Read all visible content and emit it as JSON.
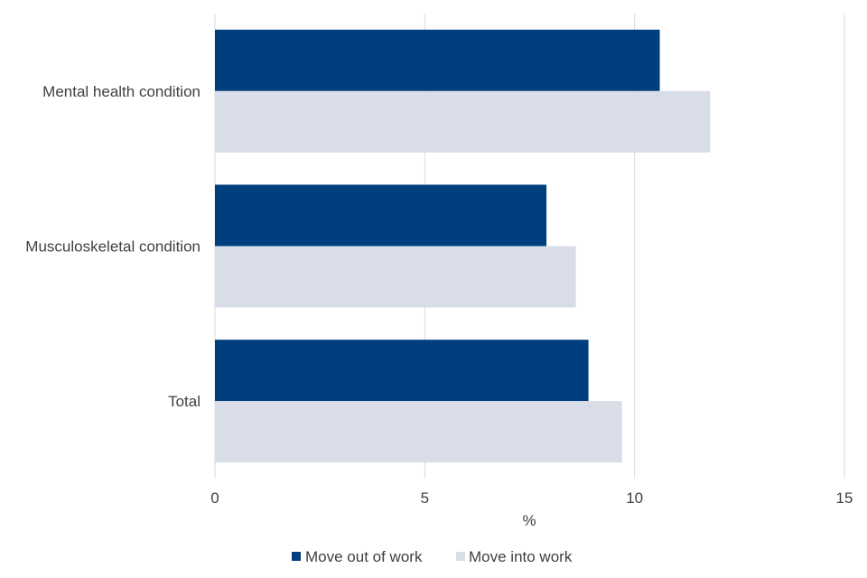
{
  "chart_data": {
    "type": "bar",
    "orientation": "horizontal",
    "categories": [
      "Mental health condition",
      "Musculoskeletal condition",
      "Total"
    ],
    "series": [
      {
        "name": "Move out of work",
        "values": [
          10.6,
          7.9,
          8.9
        ],
        "color": "#003f7d"
      },
      {
        "name": "Move into work",
        "values": [
          11.8,
          8.6,
          9.7
        ],
        "color": "#d9dde8"
      }
    ],
    "xlabel": "%",
    "ylabel": "",
    "xlim": [
      0,
      15
    ],
    "xticks": [
      "0",
      "5",
      "10",
      "15"
    ],
    "grid": true,
    "legend_position": "bottom"
  }
}
